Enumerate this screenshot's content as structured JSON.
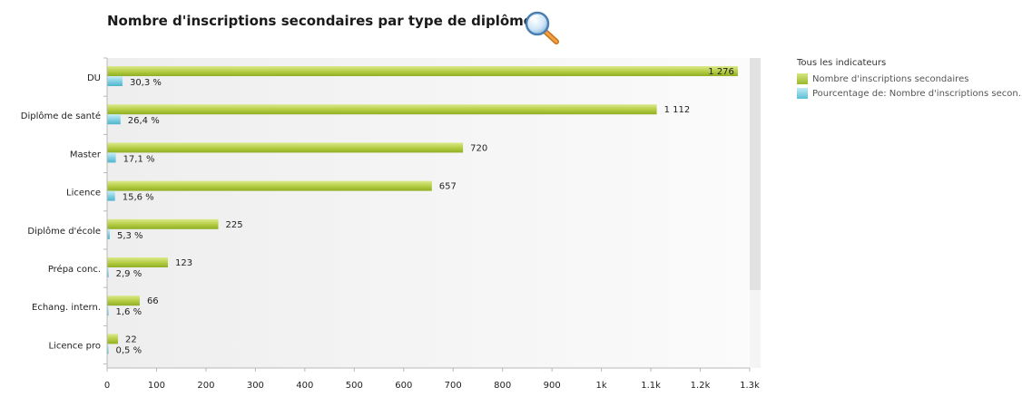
{
  "title": "Nombre d'inscriptions secondaires par type de diplôme",
  "icons": {
    "search": "magnifier-icon"
  },
  "legend": {
    "title": "Tous les indicateurs",
    "items": [
      {
        "label": "Nombre d'inscriptions secondaires",
        "color": "#a9c53a"
      },
      {
        "label": "Pourcentage de: Nombre d'inscriptions secon...",
        "color": "#6cc6dc"
      }
    ]
  },
  "chart_data": {
    "type": "bar",
    "orientation": "horizontal",
    "categories": [
      "DU",
      "Diplôme de santé",
      "Master",
      "Licence",
      "Diplôme d'école",
      "Prépa conc.",
      "Echang. intern.",
      "Licence pro"
    ],
    "series": [
      {
        "name": "Nombre d'inscriptions secondaires",
        "values": [
          1276,
          1112,
          720,
          657,
          225,
          123,
          66,
          22
        ],
        "labels": [
          "1 276",
          "1 112",
          "720",
          "657",
          "225",
          "123",
          "66",
          "22"
        ]
      },
      {
        "name": "Pourcentage de: Nombre d'inscriptions secon...",
        "values": [
          30.3,
          26.4,
          17.1,
          15.6,
          5.3,
          2.9,
          1.6,
          0.5
        ],
        "labels": [
          "30,3 %",
          "26,4 %",
          "17,1 %",
          "15,6 %",
          "5,3 %",
          "2,9 %",
          "1,6 %",
          "0,5 %"
        ]
      }
    ],
    "xticks": [
      0,
      100,
      200,
      300,
      400,
      500,
      600,
      700,
      800,
      900,
      1000,
      1100,
      1200,
      1300
    ],
    "xtick_labels": [
      "0",
      "100",
      "200",
      "300",
      "400",
      "500",
      "600",
      "700",
      "800",
      "900",
      "1k",
      "1.1k",
      "1.2k",
      "1.3k"
    ],
    "xlim": [
      0,
      1300
    ],
    "legend_position": "right"
  }
}
